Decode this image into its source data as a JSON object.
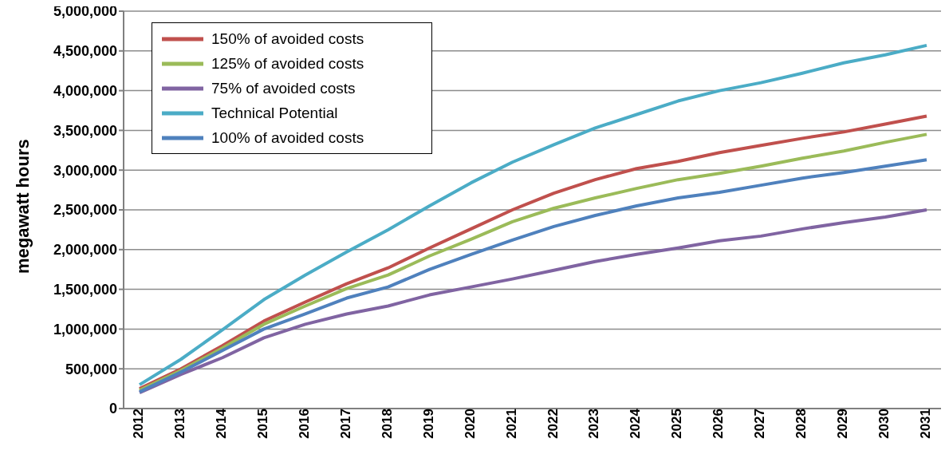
{
  "chart_data": {
    "type": "line",
    "ylabel": "megawatt hours",
    "categories": [
      "2012",
      "2013",
      "2014",
      "2015",
      "2016",
      "2017",
      "2018",
      "2019",
      "2020",
      "2021",
      "2022",
      "2023",
      "2024",
      "2025",
      "2026",
      "2027",
      "2028",
      "2029",
      "2030",
      "2031"
    ],
    "series": [
      {
        "name": "150% of avoided costs",
        "color": "#c0504d",
        "values": [
          250000,
          500000,
          790000,
          1100000,
          1340000,
          1570000,
          1770000,
          2020000,
          2260000,
          2500000,
          2710000,
          2880000,
          3020000,
          3110000,
          3220000,
          3310000,
          3400000,
          3480000,
          3580000,
          3680000
        ]
      },
      {
        "name": "125% of avoided costs",
        "color": "#9bbb59",
        "values": [
          230000,
          480000,
          760000,
          1060000,
          1290000,
          1510000,
          1680000,
          1920000,
          2130000,
          2350000,
          2520000,
          2650000,
          2770000,
          2880000,
          2960000,
          3050000,
          3150000,
          3240000,
          3350000,
          3450000
        ]
      },
      {
        "name": "75% of avoided costs",
        "color": "#8064a2",
        "values": [
          200000,
          430000,
          640000,
          890000,
          1060000,
          1190000,
          1290000,
          1430000,
          1530000,
          1630000,
          1740000,
          1850000,
          1940000,
          2020000,
          2110000,
          2170000,
          2260000,
          2340000,
          2410000,
          2500000
        ]
      },
      {
        "name": "Technical Potential",
        "color": "#4bacc6",
        "values": [
          300000,
          620000,
          990000,
          1370000,
          1680000,
          1970000,
          2250000,
          2550000,
          2840000,
          3100000,
          3320000,
          3530000,
          3700000,
          3870000,
          4000000,
          4100000,
          4220000,
          4350000,
          4450000,
          4570000
        ]
      },
      {
        "name": "100% of avoided costs",
        "color": "#4f81bd",
        "values": [
          210000,
          460000,
          730000,
          1000000,
          1190000,
          1390000,
          1530000,
          1750000,
          1940000,
          2120000,
          2290000,
          2430000,
          2550000,
          2650000,
          2720000,
          2810000,
          2900000,
          2970000,
          3050000,
          3130000
        ]
      }
    ],
    "ylim": [
      0,
      5000000
    ],
    "yticks": [
      0,
      {
        "value": 500000,
        "label": "500,000"
      },
      {
        "value": 1000000,
        "label": "1,000,000"
      },
      {
        "value": 1500000,
        "label": "1,500,000"
      },
      {
        "value": 2000000,
        "label": "2,000,000"
      },
      {
        "value": 2500000,
        "label": "2,500,000"
      },
      {
        "value": 3000000,
        "label": "3,000,000"
      },
      {
        "value": 3500000,
        "label": "3,500,000"
      },
      {
        "value": 4000000,
        "label": "4,000,000"
      },
      {
        "value": 4500000,
        "label": "4,500,000"
      },
      {
        "value": 5000000,
        "label": "5,000,000"
      }
    ],
    "grid": "y",
    "legend": "top left",
    "marker": "none",
    "line_style": "solid"
  }
}
